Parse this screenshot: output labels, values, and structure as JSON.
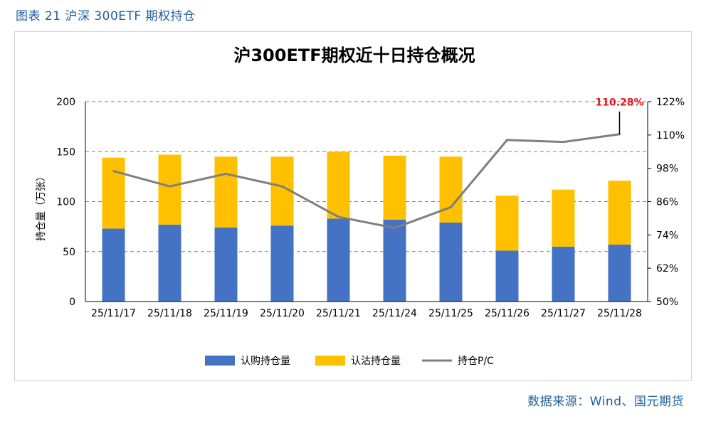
{
  "figure_title": "图表 21 沪深 300ETF 期权持仓",
  "source": "数据来源：Wind、国元期货",
  "colors": {
    "call": "#4472c4",
    "put": "#ffc000",
    "pc_line": "#7f7f7f",
    "annotation": "#e8141c"
  },
  "chart_data": {
    "type": "bar",
    "title": "沪300ETF期权近十日持仓概况",
    "ylabel": "持仓量（万张）",
    "categories": [
      "25/11/17",
      "25/11/18",
      "25/11/19",
      "25/11/20",
      "25/11/21",
      "25/11/24",
      "25/11/25",
      "25/11/26",
      "25/11/27",
      "25/11/28"
    ],
    "ylim": [
      0,
      200
    ],
    "yticks": [
      0,
      50,
      100,
      150,
      200
    ],
    "ytick_labels": [
      "0",
      "50",
      "100",
      "150",
      "200"
    ],
    "y2lim": [
      50,
      122
    ],
    "y2ticks": [
      50,
      62,
      74,
      86,
      98,
      110,
      122
    ],
    "y2tick_labels": [
      "50%",
      "62%",
      "74%",
      "86%",
      "98%",
      "110%",
      "122%"
    ],
    "stacked": true,
    "series": [
      {
        "name": "认购持仓量",
        "kind": "bar",
        "axis": "left",
        "values": [
          73,
          77,
          74,
          76,
          83,
          82,
          79,
          51,
          55,
          57
        ]
      },
      {
        "name": "认沽持仓量",
        "kind": "bar",
        "axis": "left",
        "values": [
          71,
          70,
          71,
          69,
          67,
          64,
          66,
          55,
          57,
          64
        ]
      },
      {
        "name": "持仓P/C",
        "kind": "line",
        "axis": "right",
        "values": [
          97.0,
          91.5,
          96.0,
          91.5,
          80.5,
          76.5,
          84.0,
          108.2,
          107.5,
          110.28
        ]
      }
    ],
    "annotation": {
      "text": "110.28%",
      "index": 9
    }
  }
}
